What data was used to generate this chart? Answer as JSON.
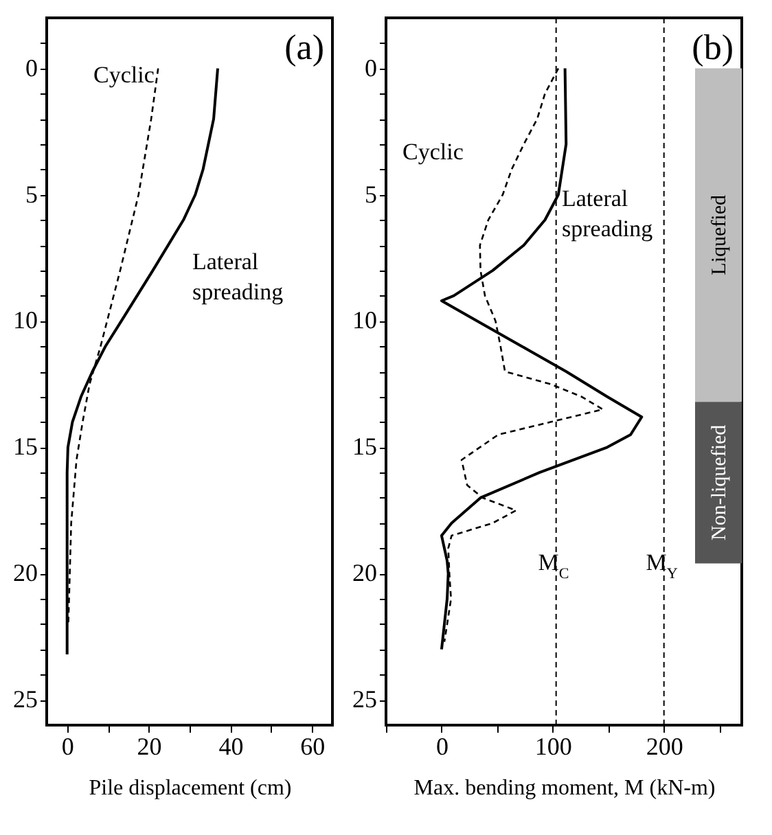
{
  "chart_data": [
    {
      "type": "line",
      "xlabel": "Pile displacement  (cm)",
      "xlim": [
        -5,
        65
      ],
      "ylim": [
        26,
        -2
      ],
      "xticks": [
        0,
        {
          "value": 10,
          "label": null
        },
        20,
        {
          "value": 30,
          "label": null
        },
        40,
        {
          "value": 50,
          "label": null
        },
        60
      ],
      "yticks": [
        {
          "value": -1,
          "label": null
        },
        0,
        {
          "value": 1,
          "label": null
        },
        {
          "value": 2,
          "label": null
        },
        {
          "value": 3,
          "label": null
        },
        {
          "value": 4,
          "label": null
        },
        5,
        {
          "value": 6,
          "label": null
        },
        {
          "value": 7,
          "label": null
        },
        {
          "value": 8,
          "label": null
        },
        {
          "value": 9,
          "label": null
        },
        10,
        {
          "value": 11,
          "label": null
        },
        {
          "value": 12,
          "label": null
        },
        {
          "value": 13,
          "label": null
        },
        {
          "value": 14,
          "label": null
        },
        15,
        {
          "value": 16,
          "label": null
        },
        {
          "value": 17,
          "label": null
        },
        {
          "value": 18,
          "label": null
        },
        {
          "value": 19,
          "label": null
        },
        20,
        {
          "value": 21,
          "label": null
        },
        {
          "value": 22,
          "label": null
        },
        {
          "value": 23,
          "label": null
        },
        {
          "value": 24,
          "label": null
        },
        25
      ],
      "annotations": [
        "(a)"
      ],
      "series": [
        {
          "name": "Cyclic",
          "color": "#000000",
          "line_style": "dashed",
          "x": [
            22.3,
            20.6,
            17.5,
            13,
            8.2,
            5.5,
            3.8,
            2.3,
            1,
            0.3
          ],
          "values": [
            0,
            2,
            5,
            8,
            11,
            12.5,
            14,
            15.5,
            18,
            22
          ]
        },
        {
          "name": "Lateral spreading",
          "color": "#000000",
          "line_style": "solid",
          "x": [
            36.9,
            35.9,
            33.3,
            31.4,
            28.5,
            21,
            13.3,
            9.4,
            6.2,
            3.4,
            1.3,
            0.2,
            0,
            0
          ],
          "values": [
            0,
            2,
            4,
            5,
            6,
            8,
            10,
            11,
            12,
            13,
            14,
            15,
            16,
            23.2
          ]
        }
      ]
    },
    {
      "type": "line",
      "xlabel": "Max. bending moment, M (kN-m)",
      "xlim": [
        -50,
        270
      ],
      "ylim": [
        26,
        -2
      ],
      "xticks": [
        {
          "value": -50,
          "label": null
        },
        0,
        {
          "value": 50,
          "label": null
        },
        100,
        {
          "value": 150,
          "label": null
        },
        200,
        {
          "value": 250,
          "label": null
        }
      ],
      "yticks": [
        {
          "value": -1,
          "label": null
        },
        0,
        {
          "value": 1,
          "label": null
        },
        {
          "value": 2,
          "label": null
        },
        {
          "value": 3,
          "label": null
        },
        {
          "value": 4,
          "label": null
        },
        5,
        {
          "value": 6,
          "label": null
        },
        {
          "value": 7,
          "label": null
        },
        {
          "value": 8,
          "label": null
        },
        {
          "value": 9,
          "label": null
        },
        10,
        {
          "value": 11,
          "label": null
        },
        {
          "value": 12,
          "label": null
        },
        {
          "value": 13,
          "label": null
        },
        {
          "value": 14,
          "label": null
        },
        15,
        {
          "value": 16,
          "label": null
        },
        {
          "value": 17,
          "label": null
        },
        {
          "value": 18,
          "label": null
        },
        {
          "value": 19,
          "label": null
        },
        20,
        {
          "value": 21,
          "label": null
        },
        {
          "value": 22,
          "label": null
        },
        {
          "value": 23,
          "label": null
        },
        {
          "value": 24,
          "label": null
        },
        25
      ],
      "annotations": [
        "(b)"
      ],
      "ref_lines": [
        {
          "axis": "x",
          "value": 103,
          "label": "M$_{C}$",
          "line_style": "dashed",
          "color": "#000000"
        },
        {
          "axis": "x",
          "value": 200,
          "label": "M$_{Y}$",
          "line_style": "dashed",
          "color": "#000000"
        }
      ],
      "bands": [
        {
          "axis": "y",
          "from": 0,
          "to": 13.2,
          "label": "Liquefied",
          "color": "#bebebe"
        },
        {
          "axis": "y",
          "from": 13.2,
          "to": 19.6,
          "label": "Non-liquefied",
          "color": "#555555"
        }
      ],
      "series": [
        {
          "name": "Cyclic",
          "color": "#000000",
          "line_style": "dashed",
          "x": [
            105,
            93,
            86,
            74,
            63,
            55,
            42,
            34.5,
            35,
            39,
            48.5,
            53,
            57,
            98,
            126,
            145,
            98,
            51,
            18,
            23,
            37,
            67,
            46,
            9,
            6,
            7,
            8.5,
            5,
            2.5
          ],
          "values": [
            0,
            1,
            2,
            3,
            4,
            5,
            6,
            7,
            8,
            9,
            10,
            11,
            12,
            12.5,
            13,
            13.5,
            14,
            14.5,
            15.5,
            16.5,
            17,
            17.5,
            18,
            18.5,
            19,
            20,
            21,
            22,
            22.7
          ]
        },
        {
          "name": "Lateral spreading",
          "color": "#000000",
          "line_style": "solid",
          "x": [
            111,
            112,
            105,
            93,
            74,
            46,
            11,
            0,
            32,
            72,
            112,
            149,
            180,
            170,
            149,
            88,
            35,
            9,
            0,
            5,
            6,
            5,
            2.5,
            0
          ],
          "values": [
            0,
            3,
            5,
            6,
            7,
            8,
            9,
            9.2,
            10,
            11,
            12,
            13,
            13.8,
            14.5,
            15,
            16,
            17,
            18,
            18.5,
            19.5,
            20,
            21,
            22,
            23
          ]
        }
      ]
    }
  ]
}
